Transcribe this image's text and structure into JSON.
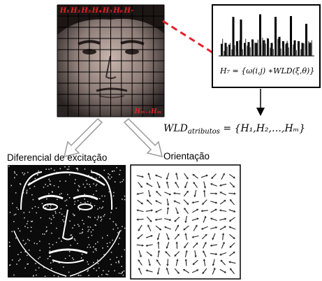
{
  "face_grid": {
    "top_labels": [
      "H₁",
      "H₂",
      "H₃",
      "H₄",
      "H₅",
      "H₆",
      "H₇"
    ],
    "bottom_labels": [
      "Hₘ₋₁",
      "Hₘ"
    ],
    "grid_rows": 10,
    "grid_cols": 10,
    "label_color": "#e8202a"
  },
  "histogram_box": {
    "formula": "H₇ = {ω(i,j) ∗WLD(ξ,θ)}",
    "bar_heights": [
      0.28,
      0.3,
      0.26,
      0.9,
      0.34,
      0.84,
      0.3,
      0.32,
      0.38,
      0.3,
      0.96,
      0.36,
      0.4,
      0.3,
      0.9,
      0.44,
      0.34,
      0.3,
      0.92,
      0.36,
      0.34,
      0.3,
      0.74,
      0.3
    ]
  },
  "feature_formula": {
    "lhs": "WLD",
    "lhs_sub": "atributos",
    "rhs": "= {H₁,H₂,…,Hₘ}"
  },
  "labels": {
    "excitation": "Diferencial de excitação",
    "orientation": "Orientação"
  },
  "orientation_field": {
    "rows": 12,
    "cols": 11,
    "seed_angles": [
      12,
      200,
      95,
      310,
      45,
      150,
      260,
      330,
      70,
      180,
      225,
      15,
      120,
      285,
      60,
      350,
      170,
      240,
      30,
      100
    ]
  },
  "colors": {
    "dashed_connector": "#e8202a",
    "outline": "#000000",
    "hollow_arrow": "#9a9a9a"
  }
}
